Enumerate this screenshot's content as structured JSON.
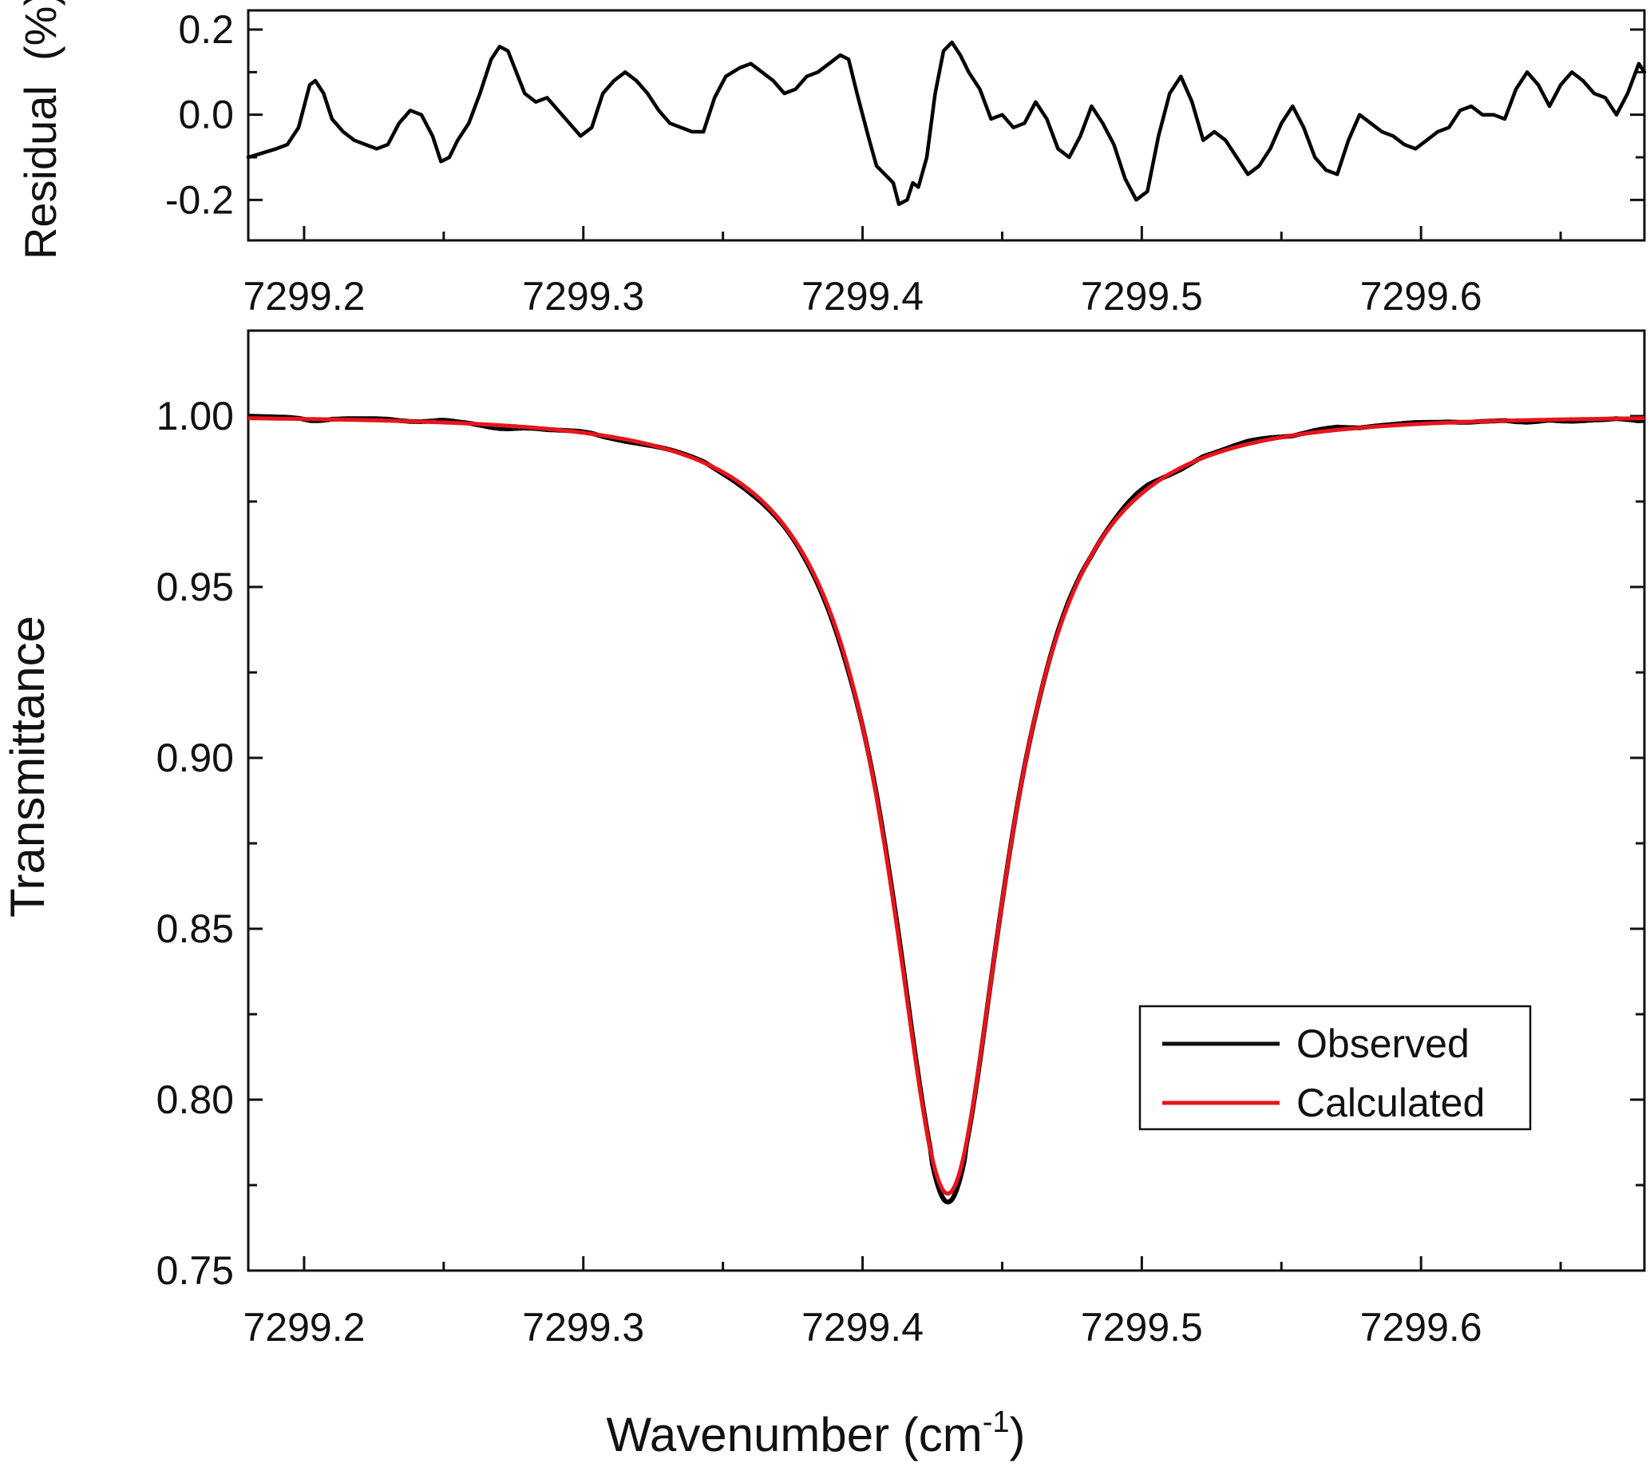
{
  "chart_data": [
    {
      "type": "line",
      "panel": "residual",
      "ylabel": "Residual  (%)",
      "xlim": [
        7299.18,
        7299.68
      ],
      "ylim": [
        -0.295,
        0.245
      ],
      "x_ticks": [
        "7299.2",
        "7299.3",
        "7299.4",
        "7299.5",
        "7299.6"
      ],
      "y_ticks": [
        "0.2",
        "0.0",
        "-0.2"
      ],
      "grid": false,
      "series": [
        {
          "color": "#000000",
          "x": [
            7299.18,
            7299.185,
            7299.19,
            7299.194,
            7299.198,
            7299.202,
            7299.204,
            7299.207,
            7299.21,
            7299.214,
            7299.218,
            7299.222,
            7299.226,
            7299.23,
            7299.234,
            7299.238,
            7299.242,
            7299.246,
            7299.249,
            7299.252,
            7299.255,
            7299.259,
            7299.263,
            7299.267,
            7299.27,
            7299.273,
            7299.276,
            7299.279,
            7299.283,
            7299.287,
            7299.291,
            7299.295,
            7299.299,
            7299.303,
            7299.307,
            7299.311,
            7299.315,
            7299.319,
            7299.323,
            7299.327,
            7299.331,
            7299.335,
            7299.339,
            7299.343,
            7299.347,
            7299.351,
            7299.356,
            7299.36,
            7299.364,
            7299.368,
            7299.372,
            7299.376,
            7299.38,
            7299.384,
            7299.388,
            7299.392,
            7299.395,
            7299.398,
            7299.402,
            7299.405,
            7299.408,
            7299.411,
            7299.413,
            7299.416,
            7299.418,
            7299.42,
            7299.423,
            7299.426,
            7299.429,
            7299.432,
            7299.435,
            7299.438,
            7299.442,
            7299.446,
            7299.45,
            7299.454,
            7299.458,
            7299.462,
            7299.466,
            7299.47,
            7299.474,
            7299.478,
            7299.482,
            7299.486,
            7299.49,
            7299.494,
            7299.498,
            7299.502,
            7299.506,
            7299.51,
            7299.514,
            7299.518,
            7299.522,
            7299.526,
            7299.53,
            7299.534,
            7299.538,
            7299.542,
            7299.546,
            7299.55,
            7299.554,
            7299.558,
            7299.562,
            7299.566,
            7299.57,
            7299.574,
            7299.578,
            7299.582,
            7299.586,
            7299.59,
            7299.594,
            7299.598,
            7299.602,
            7299.606,
            7299.61,
            7299.614,
            7299.618,
            7299.622,
            7299.626,
            7299.63,
            7299.634,
            7299.638,
            7299.642,
            7299.646,
            7299.65,
            7299.654,
            7299.658,
            7299.662,
            7299.666,
            7299.67,
            7299.674,
            7299.678,
            7299.68
          ],
          "y": [
            -0.1,
            -0.09,
            -0.08,
            -0.07,
            -0.03,
            0.07,
            0.08,
            0.05,
            -0.01,
            -0.04,
            -0.06,
            -0.07,
            -0.08,
            -0.07,
            -0.02,
            0.01,
            0.0,
            -0.05,
            -0.11,
            -0.1,
            -0.06,
            -0.02,
            0.05,
            0.13,
            0.16,
            0.15,
            0.1,
            0.05,
            0.03,
            0.04,
            0.01,
            -0.02,
            -0.05,
            -0.03,
            0.05,
            0.08,
            0.1,
            0.08,
            0.05,
            0.01,
            -0.02,
            -0.03,
            -0.04,
            -0.04,
            0.04,
            0.09,
            0.11,
            0.12,
            0.1,
            0.08,
            0.05,
            0.06,
            0.09,
            0.1,
            0.12,
            0.14,
            0.13,
            0.05,
            -0.05,
            -0.12,
            -0.14,
            -0.16,
            -0.21,
            -0.2,
            -0.16,
            -0.17,
            -0.1,
            0.05,
            0.15,
            0.17,
            0.14,
            0.1,
            0.06,
            -0.01,
            0.0,
            -0.03,
            -0.02,
            0.03,
            -0.01,
            -0.08,
            -0.1,
            -0.05,
            0.02,
            -0.02,
            -0.07,
            -0.15,
            -0.2,
            -0.18,
            -0.05,
            0.05,
            0.09,
            0.03,
            -0.06,
            -0.04,
            -0.06,
            -0.1,
            -0.14,
            -0.12,
            -0.08,
            -0.02,
            0.02,
            -0.03,
            -0.1,
            -0.13,
            -0.14,
            -0.06,
            0.0,
            -0.02,
            -0.04,
            -0.05,
            -0.07,
            -0.08,
            -0.06,
            -0.04,
            -0.03,
            0.01,
            0.02,
            0.0,
            0.0,
            -0.01,
            0.06,
            0.1,
            0.07,
            0.02,
            0.07,
            0.1,
            0.08,
            0.05,
            0.04,
            0.0,
            0.05,
            0.12,
            0.1
          ]
        }
      ]
    },
    {
      "type": "line",
      "panel": "transmittance",
      "xlabel": "Wavenumber (cm",
      "xlabel_sup": "-1",
      "xlabel_end": ")",
      "ylabel": "Transmittance",
      "xlim": [
        7299.18,
        7299.68
      ],
      "ylim": [
        0.75,
        1.025
      ],
      "x_ticks": [
        "7299.2",
        "7299.3",
        "7299.4",
        "7299.5",
        "7299.6"
      ],
      "y_ticks": [
        "1.00",
        "0.95",
        "0.90",
        "0.85",
        "0.80",
        "0.75"
      ],
      "grid": false,
      "legend_position": "lower-right",
      "line_center": 7299.4305,
      "minimum": 0.7725,
      "series": [
        {
          "name": "Observed",
          "color": "#000000"
        },
        {
          "name": "Calculated",
          "color": "#e8141c"
        }
      ]
    }
  ]
}
